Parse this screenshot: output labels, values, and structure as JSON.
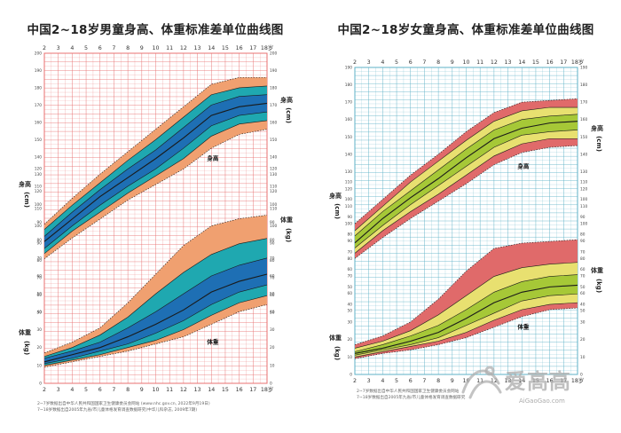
{
  "chart_data": [
    {
      "type": "area",
      "title": "中国2~18岁男童身高、体重标准差单位曲线图",
      "x_axis": {
        "tick_labels": [
          "2",
          "3",
          "4",
          "5",
          "6",
          "7",
          "8",
          "9",
          "10",
          "11",
          "12",
          "13",
          "14",
          "15",
          "16",
          "17",
          "18岁"
        ],
        "range": [
          2,
          18
        ]
      },
      "y_axis_left": {
        "label_height": "身高(cm)",
        "label_weight": "体重(kg)",
        "height_range": [
          50,
          200
        ],
        "weight_range": [
          0,
          120
        ]
      },
      "y_axis_right": {
        "label_height": "身高(cm)",
        "label_weight": "体重(kg)"
      },
      "annotations": [
        "身高",
        "体重"
      ],
      "grid": true,
      "colors": {
        "outer_band": "#f0a070",
        "inner_band": "#1fa8b0",
        "center_band": "#1e6fb4",
        "grid": "#e87070",
        "line": "#1a1a1a"
      },
      "height_sd_curves": {
        "ages": [
          2,
          4,
          6,
          8,
          10,
          12,
          14,
          16,
          18
        ],
        "values": {
          "-3SD": [
            81,
            93,
            104,
            115,
            124,
            133,
            145,
            153,
            156
          ],
          "-2SD": [
            84,
            97,
            108,
            119,
            129,
            139,
            152,
            159,
            161
          ],
          "-1SD": [
            87,
            100,
            112,
            123,
            133,
            145,
            158,
            164,
            166
          ],
          "median": [
            91,
            104,
            117,
            128,
            139,
            151,
            164,
            169,
            171
          ],
          "+1SD": [
            94,
            108,
            121,
            133,
            144,
            157,
            170,
            175,
            176
          ],
          "+2SD": [
            98,
            112,
            125,
            138,
            150,
            163,
            176,
            180,
            181
          ],
          "+3SD": [
            101,
            116,
            130,
            143,
            156,
            169,
            182,
            186,
            186
          ]
        }
      },
      "weight_sd_curves": {
        "ages": [
          2,
          4,
          6,
          8,
          10,
          12,
          14,
          16,
          18
        ],
        "values": {
          "-3SD": [
            9,
            12,
            15,
            18,
            22,
            26,
            33,
            40,
            44
          ],
          "-2SD": [
            10,
            13,
            16,
            20,
            24,
            30,
            38,
            45,
            49
          ],
          "-1SD": [
            11,
            14,
            18,
            22,
            28,
            35,
            44,
            51,
            55
          ],
          "median": [
            12,
            16,
            20,
            26,
            33,
            41,
            51,
            57,
            61
          ],
          "+1SD": [
            14,
            18,
            23,
            31,
            40,
            50,
            60,
            66,
            70
          ],
          "+2SD": [
            15,
            20,
            27,
            37,
            50,
            62,
            72,
            78,
            81
          ],
          "+3SD": [
            17,
            23,
            31,
            45,
            61,
            77,
            88,
            92,
            94
          ]
        }
      },
      "footnotes": [
        "2~7岁数据出自中华人民共和国国家卫生健康委员会网站 (www.nhc.gov.cn, 2022年9月19日)",
        "7~18岁数据出自2005年九省/市儿童体格发育调查数据研究(中华儿科杂志, 2009年7期)"
      ]
    },
    {
      "type": "area",
      "title": "中国2~18岁女童身高、体重标准差单位曲线图",
      "x_axis": {
        "tick_labels": [
          "2",
          "3",
          "4",
          "5",
          "6",
          "7",
          "8",
          "9",
          "10",
          "11",
          "12",
          "13",
          "14",
          "15",
          "16",
          "17",
          "18岁"
        ],
        "range": [
          2,
          18
        ]
      },
      "y_axis_left": {
        "label_height": "身高(cm)",
        "label_weight": "体重(kg)",
        "height_range": [
          50,
          190
        ],
        "weight_range": [
          0,
          110
        ]
      },
      "y_axis_right": {
        "label_height": "身高(cm)",
        "label_weight": "体重(kg)"
      },
      "annotations": [
        "身高",
        "体重"
      ],
      "grid": true,
      "colors": {
        "outer_band": "#e06a6a",
        "inner_band": "#e8e070",
        "center_band": "#a6c837",
        "grid": "#5fb2c7",
        "line": "#1a1a1a"
      },
      "height_sd_curves": {
        "ages": [
          2,
          4,
          6,
          8,
          10,
          12,
          14,
          16,
          18
        ],
        "values": {
          "-3SD": [
            80,
            92,
            103,
            113,
            123,
            134,
            141,
            144,
            145
          ],
          "-2SD": [
            83,
            96,
            107,
            117,
            128,
            139,
            146,
            149,
            149
          ],
          "-1SD": [
            86,
            99,
            111,
            122,
            133,
            144,
            151,
            153,
            154
          ],
          "median": [
            89,
            103,
            115,
            126,
            138,
            149,
            155,
            158,
            159
          ],
          "+1SD": [
            93,
            107,
            119,
            131,
            143,
            154,
            160,
            162,
            163
          ],
          "+2SD": [
            96,
            110,
            124,
            136,
            148,
            159,
            165,
            167,
            167
          ],
          "+3SD": [
            100,
            114,
            128,
            140,
            153,
            164,
            170,
            171,
            172
          ]
        }
      },
      "weight_sd_curves": {
        "ages": [
          2,
          4,
          6,
          8,
          10,
          12,
          14,
          16,
          18
        ],
        "values": {
          "-3SD": [
            9,
            12,
            14,
            17,
            21,
            27,
            33,
            37,
            38
          ],
          "-2SD": [
            10,
            13,
            16,
            19,
            24,
            31,
            37,
            40,
            41
          ],
          "-1SD": [
            11,
            14,
            17,
            21,
            28,
            35,
            42,
            45,
            46
          ],
          "median": [
            12,
            15,
            19,
            24,
            32,
            41,
            47,
            50,
            51
          ],
          "+1SD": [
            13,
            17,
            22,
            28,
            37,
            47,
            53,
            56,
            57
          ],
          "+2SD": [
            15,
            19,
            25,
            34,
            45,
            56,
            61,
            63,
            64
          ],
          "+3SD": [
            17,
            22,
            30,
            43,
            59,
            72,
            75,
            76,
            77
          ]
        }
      },
      "footnotes": [
        "2~7岁数据出自中华人民共和国国家卫生健康委员会网站",
        "7~18岁数据出自2005年九省/市儿童体格发育调查数据研究"
      ]
    }
  ],
  "watermark": {
    "text": "爱高高",
    "url": "AiGaoGao.com"
  }
}
